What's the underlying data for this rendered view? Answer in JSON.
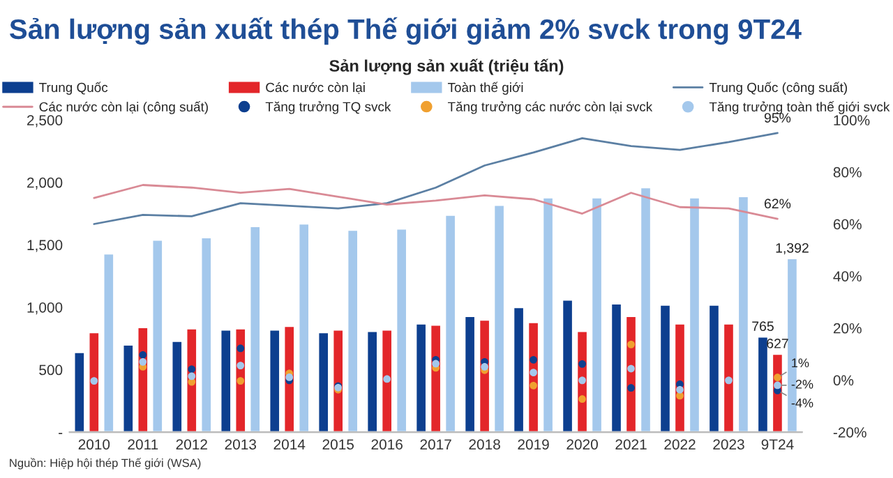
{
  "chart_data": {
    "type": "bar",
    "title": "Sản lượng sản xuất thép Thế giới giảm 2% svck trong 9T24",
    "subtitle": "Sản lượng sản xuất (triệu tấn)",
    "categories": [
      "2010",
      "2011",
      "2012",
      "2013",
      "2014",
      "2015",
      "2016",
      "2017",
      "2018",
      "2019",
      "2020",
      "2021",
      "2022",
      "2023",
      "9T24"
    ],
    "series": [
      {
        "name": "Trung Quốc",
        "color": "#0d3f8f",
        "values": [
          640,
          700,
          730,
          820,
          820,
          800,
          810,
          870,
          930,
          1000,
          1060,
          1030,
          1020,
          1020,
          765
        ],
        "value_labels": [
          null,
          null,
          null,
          null,
          null,
          null,
          null,
          null,
          null,
          null,
          null,
          null,
          null,
          null,
          "765"
        ]
      },
      {
        "name": "Các nước còn lại",
        "color": "#e3262a",
        "values": [
          800,
          840,
          830,
          830,
          850,
          820,
          820,
          860,
          900,
          880,
          810,
          930,
          870,
          870,
          627
        ],
        "value_labels": [
          null,
          null,
          null,
          null,
          null,
          null,
          null,
          null,
          null,
          null,
          null,
          null,
          null,
          null,
          "627"
        ]
      },
      {
        "name": "Toàn thế giới",
        "color": "#a4c8ec",
        "values": [
          1430,
          1540,
          1560,
          1650,
          1670,
          1620,
          1630,
          1740,
          1820,
          1880,
          1880,
          1960,
          1880,
          1890,
          1392
        ],
        "value_labels": [
          null,
          null,
          null,
          null,
          null,
          null,
          null,
          null,
          null,
          null,
          null,
          null,
          null,
          null,
          "1,392"
        ]
      },
      {
        "name": "Trung Quốc (công suất)",
        "type": "line",
        "marker": "none",
        "axis": "y2",
        "color": "#5b7fa3",
        "values": [
          60,
          63.5,
          63,
          68,
          67,
          66,
          68,
          74,
          82.5,
          87.5,
          93,
          90,
          88.5,
          91.5,
          95
        ],
        "value_labels": [
          null,
          null,
          null,
          null,
          null,
          null,
          null,
          null,
          null,
          null,
          null,
          null,
          null,
          null,
          "95%"
        ]
      },
      {
        "name": "Các nước còn lại (công suất)",
        "type": "line",
        "marker": "none",
        "axis": "y2",
        "color": "#d98a95",
        "values": [
          70,
          75,
          74,
          72,
          73.5,
          70.5,
          67.5,
          69,
          71,
          69.5,
          64,
          72,
          66.5,
          66,
          62
        ],
        "value_labels": [
          null,
          null,
          null,
          null,
          null,
          null,
          null,
          null,
          null,
          null,
          null,
          null,
          null,
          null,
          "62%"
        ]
      },
      {
        "name": "Tăng trưởng TQ svck",
        "type": "scatter",
        "axis": "y2",
        "color": "#0d3f8f",
        "values": [
          null,
          9.7,
          4.2,
          12.2,
          -0.1,
          -2.3,
          null,
          7.8,
          7,
          7.8,
          6.2,
          -3,
          -1.6,
          null,
          -4
        ],
        "value_labels": [
          null,
          null,
          null,
          null,
          null,
          null,
          null,
          null,
          null,
          null,
          null,
          null,
          null,
          null,
          "-4%"
        ]
      },
      {
        "name": "Tăng trưởng các nước còn lại svck",
        "type": "scatter",
        "axis": "y2",
        "color": "#f0a030",
        "values": [
          null,
          5.1,
          -0.7,
          -0.3,
          2.6,
          -3.7,
          null,
          4.7,
          3.8,
          -2.1,
          -7.3,
          13.7,
          -6,
          null,
          1
        ],
        "value_labels": [
          null,
          null,
          null,
          null,
          null,
          null,
          null,
          null,
          null,
          null,
          null,
          null,
          null,
          null,
          "1%"
        ]
      },
      {
        "name": "Tăng trưởng toàn thế giới svck",
        "type": "scatter",
        "axis": "y2",
        "color": "#a4c8ec",
        "values": [
          -0.3,
          7,
          1.5,
          5.6,
          1.1,
          -2.9,
          0.4,
          6.3,
          5.1,
          2.9,
          -0.1,
          4.4,
          -3.7,
          -0.1,
          -2
        ],
        "value_labels": [
          null,
          null,
          null,
          null,
          null,
          null,
          null,
          null,
          null,
          null,
          null,
          null,
          null,
          null,
          "-2%"
        ]
      }
    ],
    "ylim": [
      0,
      2500
    ],
    "yticks": [
      {
        "value": 0,
        "label": "-"
      },
      {
        "value": 500,
        "label": "500"
      },
      {
        "value": 1000,
        "label": "1,000"
      },
      {
        "value": 1500,
        "label": "1,500"
      },
      {
        "value": 2000,
        "label": "2,000"
      },
      {
        "value": 2500,
        "label": "2,500"
      }
    ],
    "y2lim": [
      -20,
      100
    ],
    "y2ticks": [
      {
        "value": -20,
        "label": "-20%"
      },
      {
        "value": 0,
        "label": "0%"
      },
      {
        "value": 20,
        "label": "20%"
      },
      {
        "value": 40,
        "label": "40%"
      },
      {
        "value": 60,
        "label": "60%"
      },
      {
        "value": 80,
        "label": "80%"
      },
      {
        "value": 100,
        "label": "100%"
      }
    ],
    "annotations": [
      "Nguồn: Hiệp hội thép Thế giới (WSA)"
    ],
    "marker": "circle",
    "line_style": "solid",
    "grid": false,
    "legend": "top"
  }
}
